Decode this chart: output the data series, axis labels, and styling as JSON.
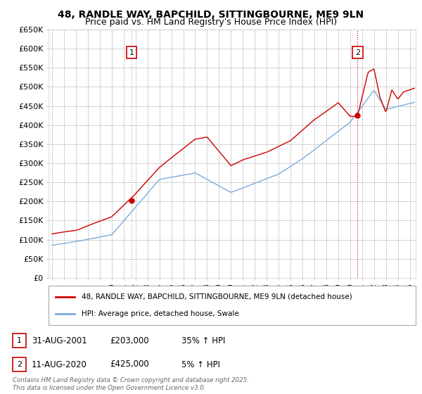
{
  "title": "48, RANDLE WAY, BAPCHILD, SITTINGBOURNE, ME9 9LN",
  "subtitle": "Price paid vs. HM Land Registry's House Price Index (HPI)",
  "ylim": [
    0,
    650000
  ],
  "yticks": [
    0,
    50000,
    100000,
    150000,
    200000,
    250000,
    300000,
    350000,
    400000,
    450000,
    500000,
    550000,
    600000,
    650000
  ],
  "xlim_start": 1994.7,
  "xlim_end": 2025.5,
  "background_color": "#ffffff",
  "grid_color": "#cccccc",
  "sale1": {
    "date_num": 2001.667,
    "price": 203000,
    "label": "1",
    "date_str": "31-AUG-2001",
    "hpi_pct": "35% ↑ HPI"
  },
  "sale2": {
    "date_num": 2020.617,
    "price": 425000,
    "label": "2",
    "date_str": "11-AUG-2020",
    "hpi_pct": "5% ↑ HPI"
  },
  "legend_label_red": "48, RANDLE WAY, BAPCHILD, SITTINGBOURNE, ME9 9LN (detached house)",
  "legend_label_blue": "HPI: Average price, detached house, Swale",
  "footer_text": "Contains HM Land Registry data © Crown copyright and database right 2025.\nThis data is licensed under the Open Government Licence v3.0.",
  "red_color": "#cc0000",
  "blue_color": "#7aacdc",
  "annotation_box_color": "#cc0000",
  "title_fontsize": 10,
  "subtitle_fontsize": 9
}
